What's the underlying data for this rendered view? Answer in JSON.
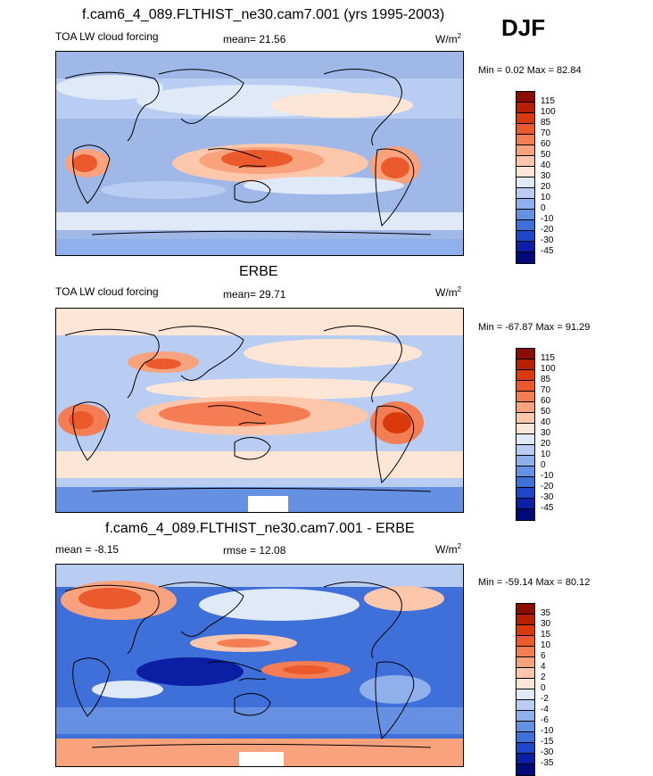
{
  "season": "DJF",
  "panels": [
    {
      "title": "f.cam6_4_089.FLTHIST_ne30.cam7.001 (yrs 1995-2003)",
      "left_label": "TOA LW cloud forcing",
      "center_label": "mean=  21.56",
      "units": "W/m",
      "units_exp": "2",
      "min_max": "Min =   0.02 Max =  82.84",
      "colorbar": {
        "levels": [
          "115",
          "100",
          "85",
          "70",
          "60",
          "50",
          "40",
          "30",
          "20",
          "10",
          "0",
          "-10",
          "-20",
          "-30",
          "-45"
        ],
        "colors": [
          "#8b0d00",
          "#b52000",
          "#d83a0b",
          "#ea5a2c",
          "#f47d53",
          "#f9a27e",
          "#fcc7aa",
          "#fde6d6",
          "#dfe9f8",
          "#b8cdf1",
          "#8fb0ea",
          "#6690e2",
          "#3f6fd9",
          "#1d46c9",
          "#0a1fa3",
          "#000a78"
        ]
      }
    },
    {
      "title": "ERBE",
      "left_label": "TOA LW cloud forcing",
      "center_label": "mean=  29.71",
      "units": "W/m",
      "units_exp": "2",
      "min_max": "Min = -67.87 Max =  91.29",
      "colorbar": {
        "levels": [
          "115",
          "100",
          "85",
          "70",
          "60",
          "50",
          "40",
          "30",
          "20",
          "10",
          "0",
          "-10",
          "-20",
          "-30",
          "-45"
        ],
        "colors": [
          "#8b0d00",
          "#b52000",
          "#d83a0b",
          "#ea5a2c",
          "#f47d53",
          "#f9a27e",
          "#fcc7aa",
          "#fde6d6",
          "#dfe9f8",
          "#b8cdf1",
          "#8fb0ea",
          "#6690e2",
          "#3f6fd9",
          "#1d46c9",
          "#0a1fa3",
          "#000a78"
        ]
      }
    },
    {
      "title": "f.cam6_4_089.FLTHIST_ne30.cam7.001 - ERBE",
      "left_label": "mean =  -8.15",
      "center_label": "rmse =  12.08",
      "units": "W/m",
      "units_exp": "2",
      "min_max": "Min = -59.14 Max =  80.12",
      "colorbar": {
        "levels": [
          "35",
          "30",
          "15",
          "10",
          "6",
          "4",
          "2",
          "0",
          "-2",
          "-4",
          "-6",
          "-10",
          "-15",
          "-30",
          "-35"
        ],
        "colors": [
          "#8b0d00",
          "#b52000",
          "#d83a0b",
          "#ea5a2c",
          "#f47d53",
          "#f9a27e",
          "#fcc7aa",
          "#fde6d6",
          "#dfe9f8",
          "#b8cdf1",
          "#8fb0ea",
          "#6690e2",
          "#3f6fd9",
          "#1d46c9",
          "#0a1fa3",
          "#000a78"
        ]
      }
    }
  ],
  "chart_data": [
    {
      "type": "heatmap",
      "title": "f.cam6_4_089.FLTHIST_ne30.cam7.001 (yrs 1995-2003)",
      "field": "TOA LW cloud forcing",
      "mean": 21.56,
      "min": 0.02,
      "max": 82.84,
      "units": "W/m2",
      "contour_levels": [
        -45,
        -30,
        -20,
        -10,
        0,
        10,
        20,
        30,
        40,
        50,
        60,
        70,
        85,
        100,
        115
      ]
    },
    {
      "type": "heatmap",
      "title": "ERBE",
      "field": "TOA LW cloud forcing",
      "mean": 29.71,
      "min": -67.87,
      "max": 91.29,
      "units": "W/m2",
      "contour_levels": [
        -45,
        -30,
        -20,
        -10,
        0,
        10,
        20,
        30,
        40,
        50,
        60,
        70,
        85,
        100,
        115
      ]
    },
    {
      "type": "heatmap",
      "title": "f.cam6_4_089.FLTHIST_ne30.cam7.001 - ERBE",
      "mean": -8.15,
      "rmse": 12.08,
      "min": -59.14,
      "max": 80.12,
      "units": "W/m2",
      "contour_levels": [
        -35,
        -30,
        -15,
        -10,
        -6,
        -4,
        -2,
        0,
        2,
        4,
        6,
        10,
        15,
        30,
        35
      ]
    }
  ]
}
